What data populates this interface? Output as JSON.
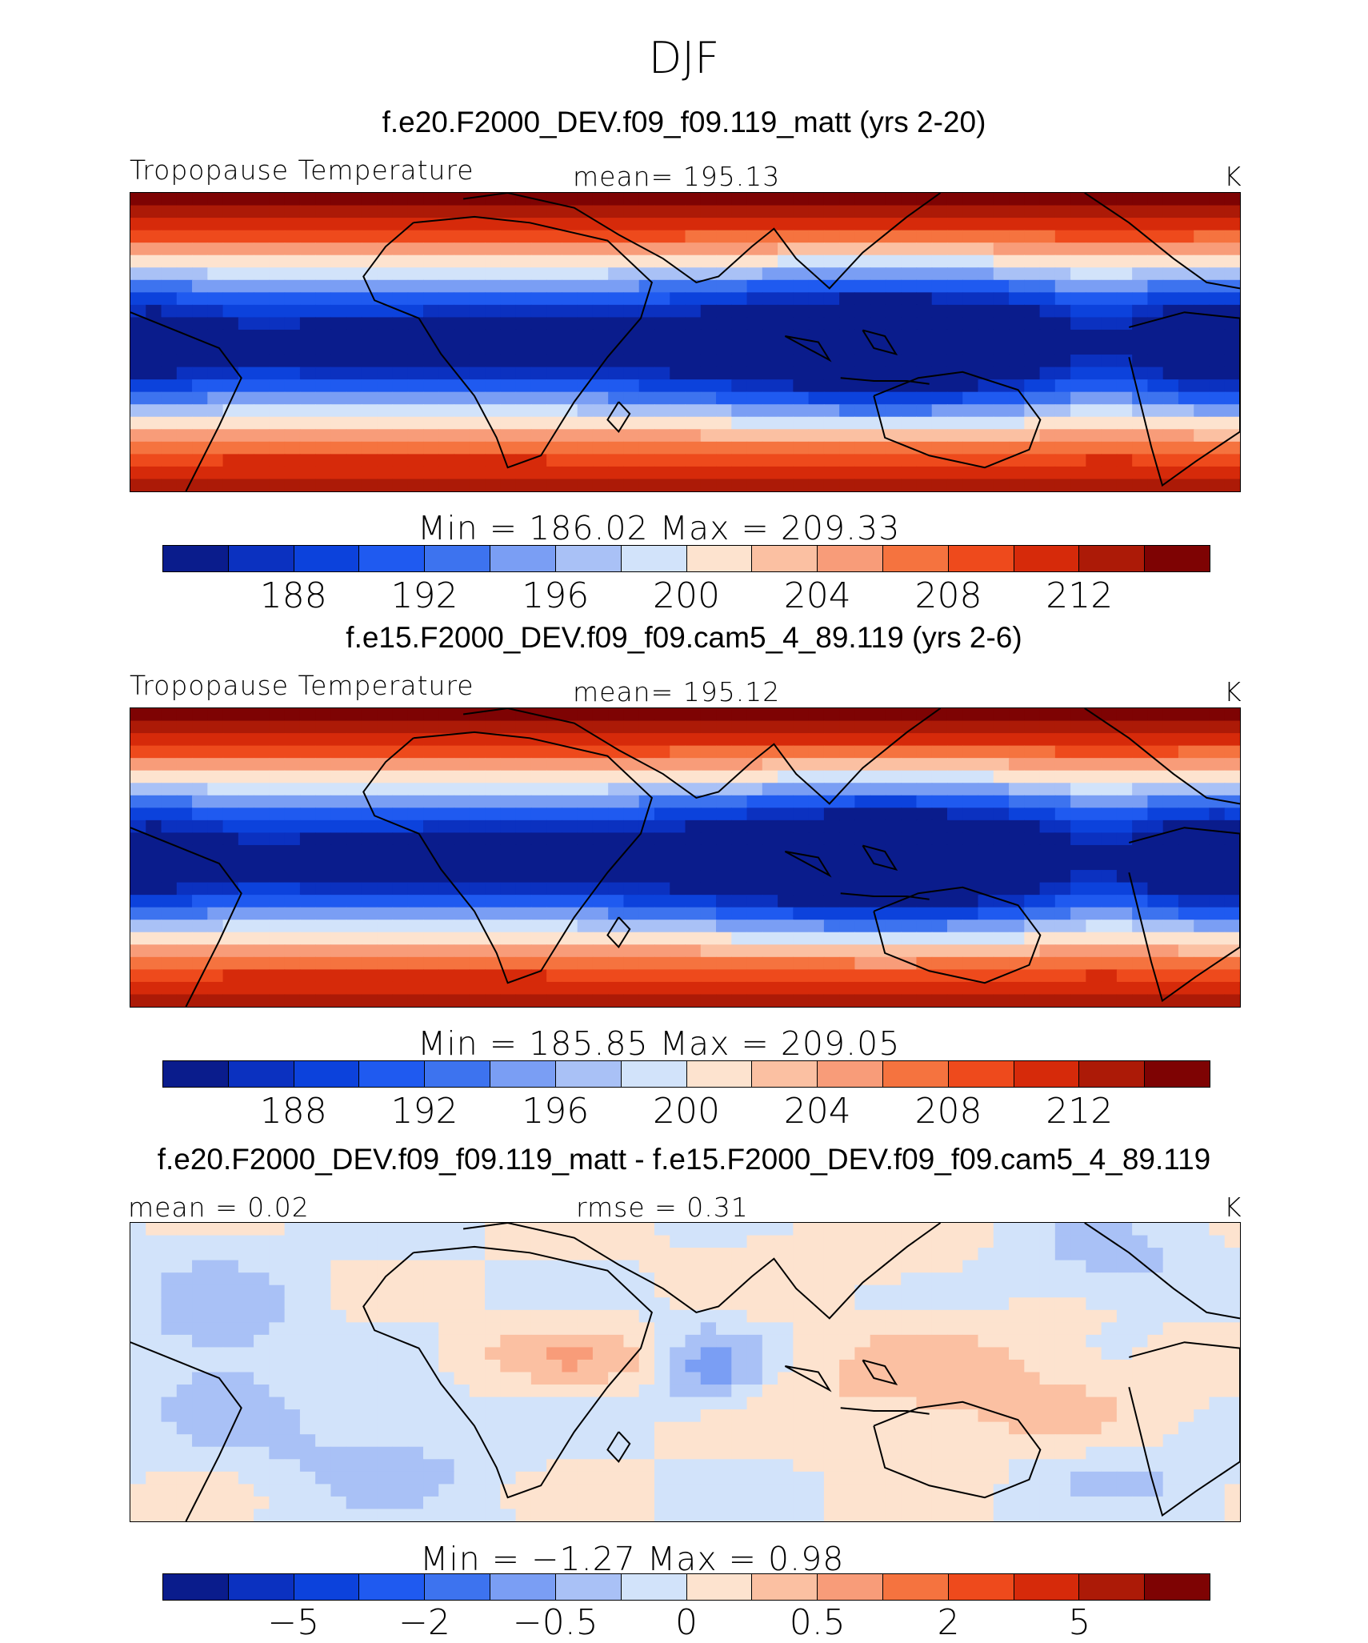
{
  "figure_title": "DJF",
  "chart_data": [
    {
      "type": "heatmap",
      "title": "f.e20.F2000_DEV.f09_f09.119_matt (yrs 2-20)",
      "left_label": "Tropopause Temperature",
      "center_label": "mean=  195.13",
      "units": "K",
      "min_max": "Min  =  186.02  Max  =  209.33",
      "min": 186.02,
      "max": 209.33,
      "mean": 195.13,
      "colorbar": {
        "colors": [
          "#0a1c8c",
          "#0b31c0",
          "#0c42dc",
          "#1f5af0",
          "#3d73ef",
          "#7a9ef4",
          "#a9c1f6",
          "#d2e3fa",
          "#fde3cf",
          "#fbc0a2",
          "#f89c79",
          "#f5733f",
          "#ee4a1c",
          "#d62a0a",
          "#ac1a07",
          "#7e0303"
        ],
        "tick_labels": [
          "188",
          "192",
          "196",
          "200",
          "204",
          "208",
          "212"
        ],
        "tick_edges": [
          2,
          4,
          6,
          8,
          10,
          12,
          14
        ]
      },
      "field": {
        "tropical_cold": 1.0,
        "polar_warm": 1.0
      }
    },
    {
      "type": "heatmap",
      "title": "f.e15.F2000_DEV.f09_f09.cam5_4_89.119 (yrs 2-6)",
      "left_label": "Tropopause Temperature",
      "center_label": "mean=  195.12",
      "units": "K",
      "min_max": "Min  =  185.85  Max  =  209.05",
      "min": 185.85,
      "max": 209.05,
      "mean": 195.12,
      "colorbar": {
        "colors": [
          "#0a1c8c",
          "#0b31c0",
          "#0c42dc",
          "#1f5af0",
          "#3d73ef",
          "#7a9ef4",
          "#a9c1f6",
          "#d2e3fa",
          "#fde3cf",
          "#fbc0a2",
          "#f89c79",
          "#f5733f",
          "#ee4a1c",
          "#d62a0a",
          "#ac1a07",
          "#7e0303"
        ],
        "tick_labels": [
          "188",
          "192",
          "196",
          "200",
          "204",
          "208",
          "212"
        ],
        "tick_edges": [
          2,
          4,
          6,
          8,
          10,
          12,
          14
        ]
      },
      "field": {
        "tropical_cold": 1.06,
        "polar_warm": 0.98
      }
    },
    {
      "type": "heatmap",
      "title": "f.e20.F2000_DEV.f09_f09.119_matt - f.e15.F2000_DEV.f09_f09.cam5_4_89.119",
      "left_label": "mean =     0.02",
      "center_label": "rmse =     0.31",
      "units": "K",
      "min_max": "Min  =    −1.27  Max  =      0.98",
      "min": -1.27,
      "max": 0.98,
      "mean": 0.02,
      "rmse": 0.31,
      "colorbar": {
        "colors": [
          "#0a1c8c",
          "#0b31c0",
          "#0c42dc",
          "#1f5af0",
          "#3d73ef",
          "#7a9ef4",
          "#a9c1f6",
          "#d2e3fa",
          "#fde3cf",
          "#fbc0a2",
          "#f89c79",
          "#f5733f",
          "#ee4a1c",
          "#d62a0a",
          "#ac1a07",
          "#7e0303"
        ],
        "tick_labels": [
          "−5",
          "−2",
          "−0.5",
          "0",
          "0.5",
          "2",
          "5"
        ],
        "tick_edges": [
          2,
          4,
          6,
          8,
          10,
          12,
          14
        ]
      },
      "field": {
        "difference": true
      }
    }
  ]
}
